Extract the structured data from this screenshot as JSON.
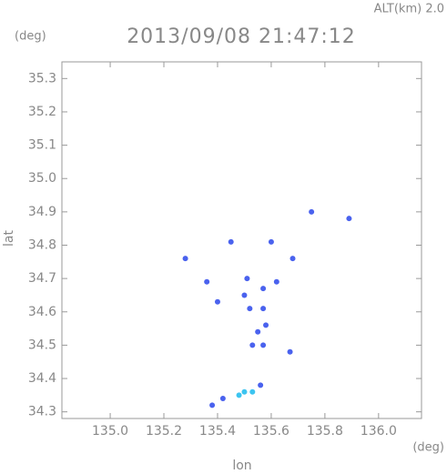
{
  "chart_data": {
    "type": "scatter",
    "altitude_label": "ALT(km)  2.0",
    "y_unit": "(deg)",
    "title": "2013/09/08 21:47:12",
    "y_label": "lat",
    "x_label": "lon",
    "x_unit": "(deg)",
    "xlim": [
      134.82,
      136.16
    ],
    "ylim": [
      34.28,
      35.35
    ],
    "xticks": [
      {
        "value": 135.0,
        "label": "135.0"
      },
      135.2,
      135.4,
      135.6,
      135.8,
      {
        "value": 136.0,
        "label": "136.0"
      }
    ],
    "yticks": [
      34.3,
      34.4,
      34.5,
      34.6,
      34.7,
      34.8,
      34.9,
      {
        "value": 35.0,
        "label": "35.0"
      },
      35.1,
      35.2,
      35.3
    ],
    "series": [
      {
        "color": "#4a62ee",
        "x": [
          135.75,
          135.89,
          135.6,
          135.45,
          135.28,
          135.68,
          135.36,
          135.51,
          135.57,
          135.62,
          135.4,
          135.5,
          135.52,
          135.57,
          135.58,
          135.55,
          135.57,
          135.53,
          135.67,
          135.56,
          135.42,
          135.38
        ],
        "y": [
          34.9,
          34.88,
          34.81,
          34.81,
          34.76,
          34.76,
          34.69,
          34.7,
          34.67,
          34.69,
          34.63,
          34.65,
          34.61,
          34.61,
          34.56,
          34.54,
          34.5,
          34.5,
          34.48,
          34.38,
          34.34,
          34.32
        ]
      },
      {
        "color": "#3cc4f0",
        "x": [
          135.48,
          135.5,
          135.53
        ],
        "y": [
          34.35,
          34.36,
          34.36
        ]
      }
    ]
  }
}
